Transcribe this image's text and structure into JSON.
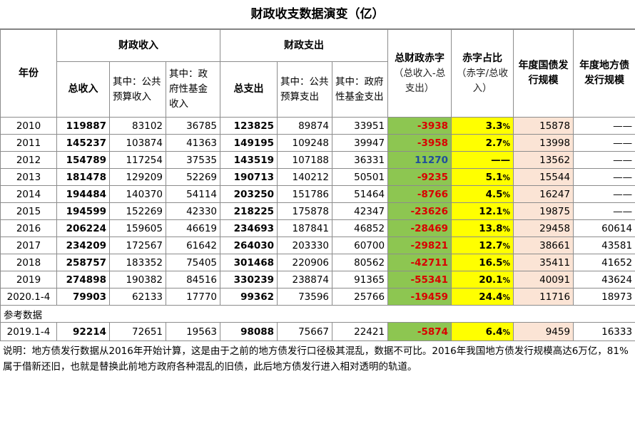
{
  "title": "财政收支数据演变（亿）",
  "headers": {
    "year": "年份",
    "revenue_group": "财政收入",
    "spending_group": "财政支出",
    "deficit": "总财政赤字",
    "deficit_note": "（总收入-总支出）",
    "ratio": "赤字占比",
    "ratio_note": "（赤字/总收入）",
    "national_debt": "年度国债发行规模",
    "local_debt": "年度地方债发行规模",
    "total_revenue": "总收入",
    "rev_public": "其中：公共预算收入",
    "rev_fund": "其中：政府性基金收入",
    "total_spending": "总支出",
    "sp_public": "其中：公共预算支出",
    "sp_fund": "其中：政府性基金支出"
  },
  "rows": [
    {
      "year": "2010",
      "total_rev": "119887",
      "rev_public": "83102",
      "rev_fund": "36785",
      "total_sp": "123825",
      "sp_public": "89874",
      "sp_fund": "33951",
      "deficit": "-3938",
      "ratio": "3.3",
      "pct": "%",
      "nat_debt": "15878",
      "local_debt": "——"
    },
    {
      "year": "2011",
      "total_rev": "145237",
      "rev_public": "103874",
      "rev_fund": "41363",
      "total_sp": "149195",
      "sp_public": "109248",
      "sp_fund": "39947",
      "deficit": "-3958",
      "ratio": "2.7",
      "pct": "%",
      "nat_debt": "13998",
      "local_debt": "——"
    },
    {
      "year": "2012",
      "total_rev": "154789",
      "rev_public": "117254",
      "rev_fund": "37535",
      "total_sp": "143519",
      "sp_public": "107188",
      "sp_fund": "36331",
      "deficit": "11270",
      "ratio": "——",
      "pct": "",
      "nat_debt": "13562",
      "local_debt": "——"
    },
    {
      "year": "2013",
      "total_rev": "181478",
      "rev_public": "129209",
      "rev_fund": "52269",
      "total_sp": "190713",
      "sp_public": "140212",
      "sp_fund": "50501",
      "deficit": "-9235",
      "ratio": "5.1",
      "pct": "%",
      "nat_debt": "15544",
      "local_debt": "——"
    },
    {
      "year": "2014",
      "total_rev": "194484",
      "rev_public": "140370",
      "rev_fund": "54114",
      "total_sp": "203250",
      "sp_public": "151786",
      "sp_fund": "51464",
      "deficit": "-8766",
      "ratio": "4.5",
      "pct": "%",
      "nat_debt": "16247",
      "local_debt": "——"
    },
    {
      "year": "2015",
      "total_rev": "194599",
      "rev_public": "152269",
      "rev_fund": "42330",
      "total_sp": "218225",
      "sp_public": "175878",
      "sp_fund": "42347",
      "deficit": "-23626",
      "ratio": "12.1",
      "pct": "%",
      "nat_debt": "19875",
      "local_debt": "——"
    },
    {
      "year": "2016",
      "total_rev": "206224",
      "rev_public": "159605",
      "rev_fund": "46619",
      "total_sp": "234693",
      "sp_public": "187841",
      "sp_fund": "46852",
      "deficit": "-28469",
      "ratio": "13.8",
      "pct": "%",
      "nat_debt": "29458",
      "local_debt": "60614"
    },
    {
      "year": "2017",
      "total_rev": "234209",
      "rev_public": "172567",
      "rev_fund": "61642",
      "total_sp": "264030",
      "sp_public": "203330",
      "sp_fund": "60700",
      "deficit": "-29821",
      "ratio": "12.7",
      "pct": "%",
      "nat_debt": "38661",
      "local_debt": "43581"
    },
    {
      "year": "2018",
      "total_rev": "258757",
      "rev_public": "183352",
      "rev_fund": "75405",
      "total_sp": "301468",
      "sp_public": "220906",
      "sp_fund": "80562",
      "deficit": "-42711",
      "ratio": "16.5",
      "pct": "%",
      "nat_debt": "35411",
      "local_debt": "41652"
    },
    {
      "year": "2019",
      "total_rev": "274898",
      "rev_public": "190382",
      "rev_fund": "84516",
      "total_sp": "330239",
      "sp_public": "238874",
      "sp_fund": "91365",
      "deficit": "-55341",
      "ratio": "20.1",
      "pct": "%",
      "nat_debt": "40091",
      "local_debt": "43624"
    },
    {
      "year": "2020.1-4",
      "total_rev": "79903",
      "rev_public": "62133",
      "rev_fund": "17770",
      "total_sp": "99362",
      "sp_public": "73596",
      "sp_fund": "25766",
      "deficit": "-19459",
      "ratio": "24.4",
      "pct": "%",
      "nat_debt": "11716",
      "local_debt": "18973"
    }
  ],
  "reference_label": "参考数据",
  "reference_row": {
    "year": "2019.1-4",
    "total_rev": "92214",
    "rev_public": "72651",
    "rev_fund": "19563",
    "total_sp": "98088",
    "sp_public": "75667",
    "sp_fund": "22421",
    "deficit": "-5874",
    "ratio": "6.4",
    "pct": "%",
    "nat_debt": "9459",
    "local_debt": "16333"
  },
  "note": "说明：地方债发行数据从2016年开始计算，这是由于之前的地方债发行口径极其混乱，数据不可比。2016年我国地方债发行规模高达6万亿，81%属于借新还旧，也就是替换此前地方政府各种混乱的旧债，此后地方债发行进入相对透明的轨道。"
}
